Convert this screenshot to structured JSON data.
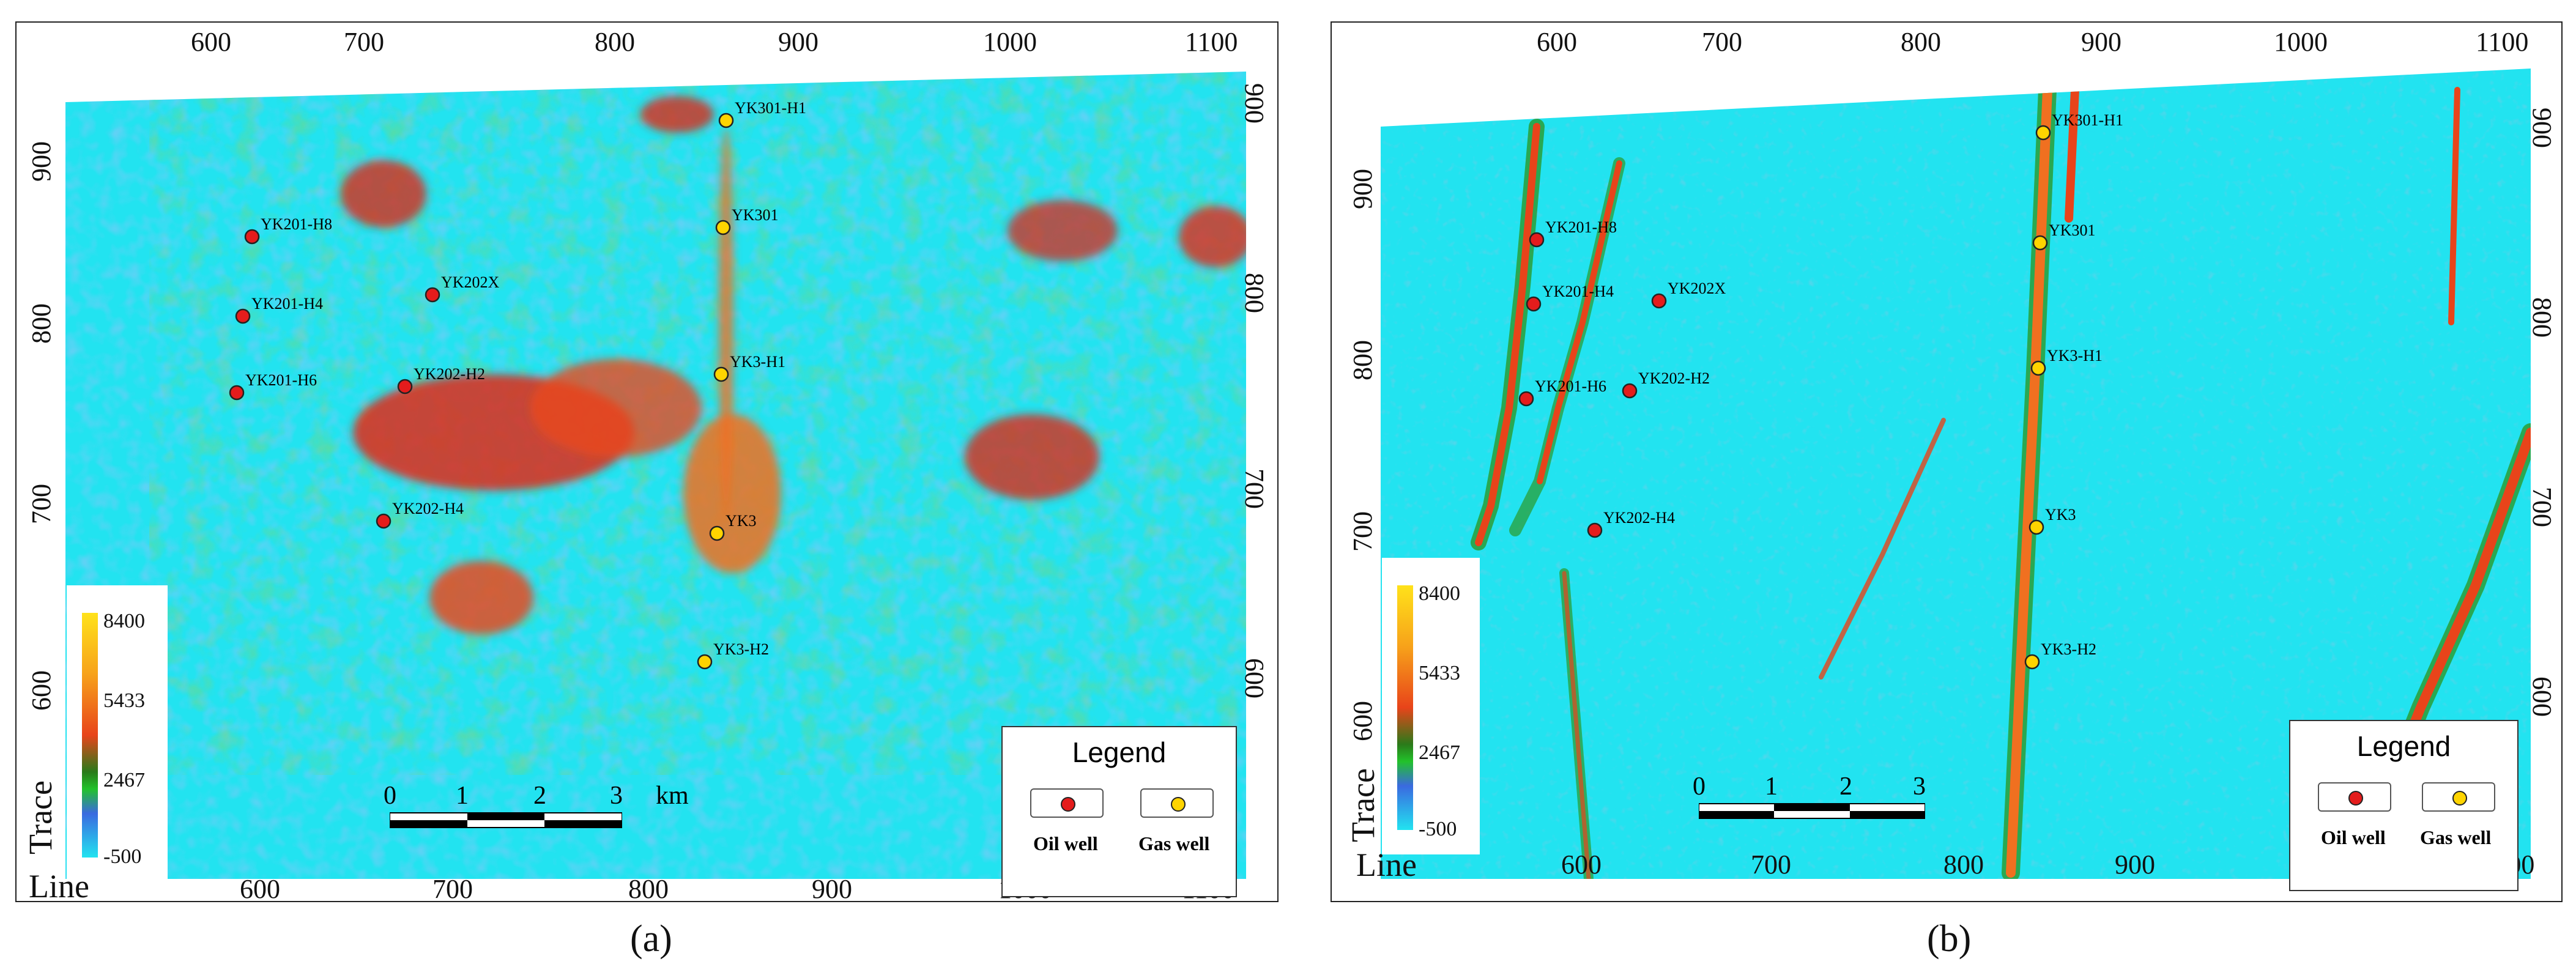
{
  "captions": {
    "a": "(a)",
    "b": "(b)"
  },
  "axis": {
    "line_label": "Line",
    "trace_label": "Trace",
    "line_ticks": [
      "600",
      "700",
      "800",
      "900",
      "1000",
      "1100"
    ],
    "trace_ticks": [
      "600",
      "700",
      "800",
      "900"
    ]
  },
  "colorbar": {
    "max": "8400",
    "mid_high": "5433",
    "mid_low": "2467",
    "min": "-500"
  },
  "scale": {
    "ticks": [
      "0",
      "1",
      "2",
      "3"
    ],
    "unit": "km"
  },
  "legend": {
    "title": "Legend",
    "oil_label": "Oil well",
    "gas_label": "Gas well"
  },
  "colors": {
    "oil": "#e41c1c",
    "gas": "#ffd400",
    "background": "#22e3f0"
  },
  "wells": [
    {
      "name": "YK301-H1",
      "type": "gas"
    },
    {
      "name": "YK301",
      "type": "gas"
    },
    {
      "name": "YK3-H1",
      "type": "gas"
    },
    {
      "name": "YK3",
      "type": "gas"
    },
    {
      "name": "YK3-H2",
      "type": "gas"
    },
    {
      "name": "YK201-H8",
      "type": "oil"
    },
    {
      "name": "YK201-H4",
      "type": "oil"
    },
    {
      "name": "YK201-H6",
      "type": "oil"
    },
    {
      "name": "YK202X",
      "type": "oil"
    },
    {
      "name": "YK202-H2",
      "type": "oil"
    },
    {
      "name": "YK202-H4",
      "type": "oil"
    }
  ]
}
